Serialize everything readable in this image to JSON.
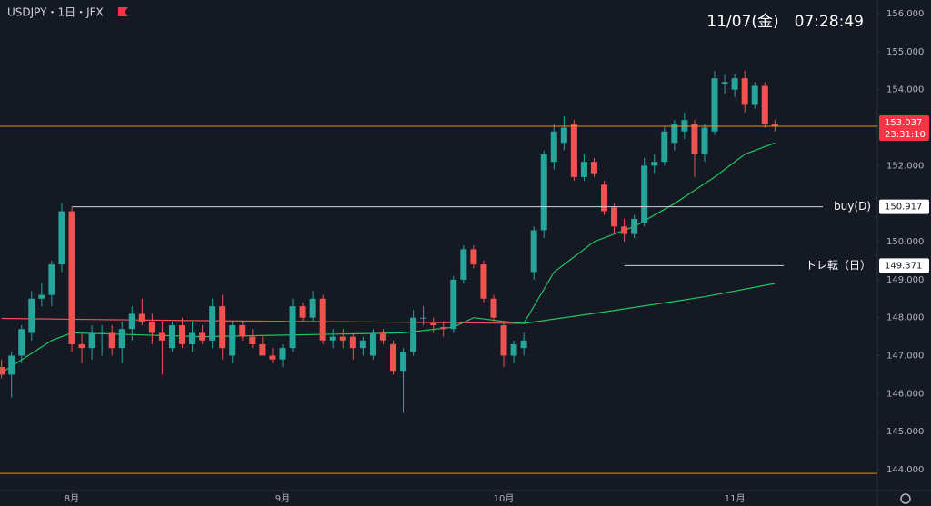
{
  "header": {
    "symbol": "USDJPY・1日・JFX",
    "clock": "11/07(金)　07:28:49"
  },
  "chart_data": {
    "type": "candlestick",
    "up_color": "#26a69a",
    "down_color": "#ef5350",
    "xlim": [
      -0.15,
      87.2
    ],
    "ylim": [
      143.45,
      156.36
    ],
    "xticks": [
      {
        "value": 7,
        "label": "8月"
      },
      {
        "value": 28,
        "label": "9月"
      },
      {
        "value": 50,
        "label": "10月"
      },
      {
        "value": 73,
        "label": "11月"
      }
    ],
    "yticks": [
      {
        "value": 144,
        "label": "144.000"
      },
      {
        "value": 145,
        "label": "145.000"
      },
      {
        "value": 146,
        "label": "146.000"
      },
      {
        "value": 147,
        "label": "147.000"
      },
      {
        "value": 148,
        "label": "148.000"
      },
      {
        "value": 149,
        "label": "149.000"
      },
      {
        "value": 150,
        "label": "150.000"
      },
      {
        "value": 151,
        "label": "151.000"
      },
      {
        "value": 152,
        "label": "152.000"
      },
      {
        "value": 153,
        "label": "153.000"
      },
      {
        "value": 154,
        "label": "154.000"
      },
      {
        "value": 155,
        "label": "155.000"
      },
      {
        "value": 156,
        "label": "156.000"
      }
    ],
    "open": [
      146.7,
      146.5,
      147.0,
      147.6,
      148.5,
      148.6,
      149.4,
      150.8,
      147.3,
      147.2,
      147.6,
      147.6,
      147.2,
      147.7,
      148.1,
      147.9,
      147.6,
      147.2,
      147.8,
      147.3,
      147.6,
      147.4,
      148.3,
      147.0,
      147.8,
      147.5,
      147.3,
      147.0,
      146.9,
      147.2,
      148.3,
      148.0,
      148.5,
      147.4,
      147.5,
      147.5,
      147.2,
      147.0,
      147.6,
      147.3,
      146.6,
      147.1,
      148.0,
      147.85,
      147.75,
      147.7,
      149.0,
      149.8,
      149.4,
      148.5,
      147.8,
      147.0,
      147.2,
      149.2,
      150.3,
      152.1,
      152.6,
      153.1,
      151.7,
      152.1,
      151.5,
      150.9,
      150.4,
      150.2,
      150.5,
      152.0,
      152.1,
      152.6,
      152.9,
      153.1,
      152.3,
      152.9,
      154.15,
      154.0,
      154.3,
      153.6,
      154.1,
      153.1
    ],
    "high": [
      146.9,
      147.1,
      147.8,
      148.7,
      148.9,
      149.5,
      151.0,
      150.9,
      147.6,
      147.8,
      147.8,
      147.8,
      147.9,
      148.3,
      148.5,
      148.1,
      147.9,
      147.9,
      148.0,
      147.9,
      147.8,
      148.5,
      148.6,
      147.9,
      147.9,
      147.7,
      147.5,
      147.2,
      147.3,
      148.5,
      148.4,
      148.7,
      148.6,
      147.7,
      147.7,
      147.6,
      147.5,
      147.7,
      147.7,
      147.4,
      147.2,
      148.2,
      148.3,
      148.0,
      147.9,
      149.1,
      149.9,
      149.9,
      149.5,
      148.6,
      147.9,
      147.4,
      147.6,
      150.4,
      152.4,
      153.1,
      153.3,
      153.2,
      152.3,
      152.2,
      151.6,
      151.0,
      150.6,
      150.7,
      152.2,
      152.3,
      153.0,
      153.2,
      153.4,
      153.2,
      153.1,
      154.5,
      154.4,
      154.4,
      154.5,
      154.2,
      154.2,
      153.2
    ],
    "low": [
      146.4,
      145.9,
      146.8,
      147.4,
      148.3,
      148.3,
      149.2,
      147.1,
      146.8,
      146.9,
      147.0,
      147.0,
      146.8,
      147.4,
      147.8,
      147.3,
      146.5,
      147.1,
      147.2,
      147.1,
      147.3,
      147.2,
      146.9,
      146.8,
      147.4,
      147.2,
      147.0,
      146.8,
      146.7,
      147.1,
      147.9,
      147.9,
      147.3,
      147.2,
      147.2,
      146.9,
      147.0,
      146.9,
      147.3,
      146.5,
      145.5,
      147.0,
      147.8,
      147.6,
      147.5,
      147.6,
      148.9,
      149.3,
      148.4,
      147.9,
      146.7,
      146.8,
      147.0,
      149.0,
      150.1,
      151.9,
      152.4,
      151.6,
      151.6,
      151.7,
      150.7,
      150.2,
      150.0,
      150.1,
      150.4,
      151.8,
      152.0,
      152.4,
      152.7,
      151.7,
      152.1,
      152.8,
      153.9,
      153.8,
      153.4,
      153.5,
      153.0,
      152.9
    ],
    "close": [
      146.5,
      147.0,
      147.7,
      148.5,
      148.6,
      149.4,
      150.8,
      147.3,
      147.2,
      147.6,
      147.6,
      147.2,
      147.7,
      148.1,
      147.9,
      147.6,
      147.4,
      147.8,
      147.3,
      147.6,
      147.4,
      148.3,
      147.2,
      147.8,
      147.5,
      147.3,
      147.0,
      146.9,
      147.2,
      148.3,
      148.0,
      148.5,
      147.4,
      147.5,
      147.4,
      147.2,
      147.4,
      147.6,
      147.4,
      146.6,
      147.1,
      148.0,
      148.0,
      147.8,
      147.7,
      149.0,
      149.8,
      149.4,
      148.5,
      148.0,
      147.0,
      147.3,
      147.4,
      150.3,
      152.3,
      152.9,
      153.0,
      151.7,
      152.1,
      151.8,
      150.8,
      150.4,
      150.2,
      150.6,
      152.0,
      152.1,
      152.9,
      153.1,
      153.2,
      152.3,
      153.0,
      154.3,
      154.2,
      154.3,
      153.6,
      154.1,
      153.1,
      153.037
    ],
    "series": [
      {
        "color": "#ef5350",
        "x": [
          0,
          10,
          20,
          30,
          40,
          52
        ],
        "values": [
          147.98,
          147.95,
          147.92,
          147.9,
          147.88,
          147.85
        ]
      },
      {
        "color": "#22c55e",
        "x": [
          0,
          5,
          7,
          20,
          40,
          45,
          47,
          50,
          52,
          55,
          59,
          63,
          67,
          71,
          74,
          77
        ],
        "values": [
          146.55,
          147.4,
          147.6,
          147.5,
          147.6,
          147.75,
          148.0,
          147.9,
          147.85,
          149.2,
          150.0,
          150.4,
          151.0,
          151.7,
          152.3,
          152.6
        ]
      },
      {
        "color": "#22c55e",
        "x": [
          52,
          60,
          70,
          77
        ],
        "values": [
          147.85,
          148.15,
          148.55,
          148.9
        ]
      }
    ],
    "levels": [
      {
        "name": "buy(D)",
        "value": 150.917,
        "label": "150.917",
        "start": 7
      },
      {
        "name": "トレ転（日）",
        "value": 149.371,
        "label": "149.371",
        "start": 62
      }
    ],
    "last": {
      "value": 153.037,
      "label": "153.037",
      "countdown": "23:31:10"
    },
    "floor": 143.9
  }
}
